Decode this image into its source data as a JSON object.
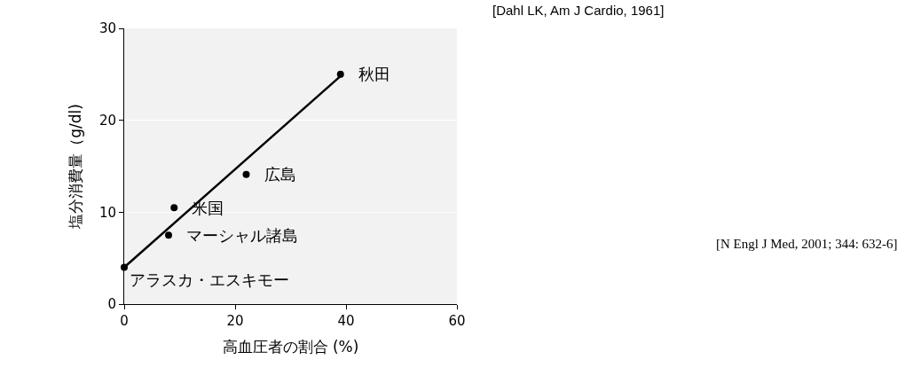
{
  "chart_data": {
    "type": "scatter",
    "xlabel": "高血圧者の割合 (%)",
    "ylabel": "塩分消費量（g/dl)",
    "x": [
      0,
      8,
      9,
      22,
      39
    ],
    "series": [
      {
        "color": "#000000",
        "values": [
          4,
          7.5,
          10.5,
          14.1,
          25
        ],
        "marker": "circle"
      },
      {
        "type": "line",
        "color": "#000000",
        "x": [
          0,
          39
        ],
        "values": [
          4,
          24.8
        ],
        "marker": "none",
        "line_style": "solid"
      }
    ],
    "xlim": [
      0,
      60
    ],
    "xticks": [
      0,
      20,
      40,
      60
    ],
    "ylim": [
      0,
      30
    ],
    "yticks": [
      0,
      10,
      20,
      30
    ],
    "grid": "y",
    "annotations": [
      {
        "text": "アラスカ・エスキモー",
        "x": 0,
        "y": 4
      },
      {
        "text": "マーシャル諸島",
        "x": 8,
        "y": 7.5
      },
      {
        "text": "米国",
        "x": 9,
        "y": 10.5
      },
      {
        "text": "広島",
        "x": 22,
        "y": 14.1
      },
      {
        "text": "秋田",
        "x": 39,
        "y": 25
      },
      "[Dahl LK, Am J Cardio, 1961]",
      "[N Engl J Med, 2001; 344: 632-6]"
    ]
  }
}
